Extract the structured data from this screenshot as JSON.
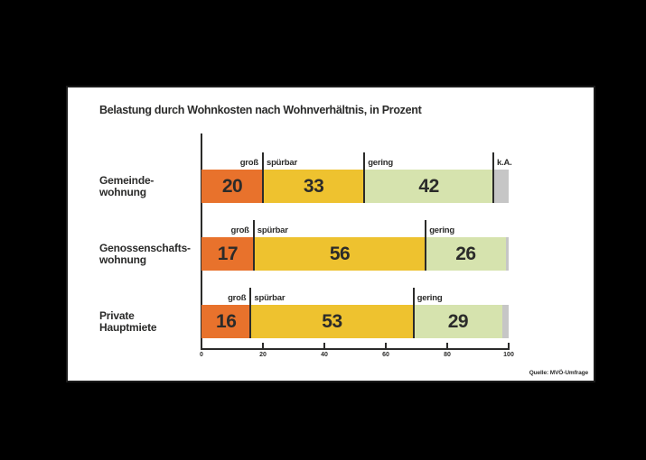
{
  "page": {
    "background_color": "#000000"
  },
  "panel": {
    "background_color": "#ffffff",
    "border_color": "#1a1a1a",
    "title": "Belastung durch Wohnkosten nach Wohnverhältnis, in Prozent",
    "source": "Quelle: MVÖ-Umfrage"
  },
  "colors": {
    "gross": "#e8722c",
    "spuerbar": "#eec22f",
    "gering": "#d6e3ae",
    "ka": "#c6c6c6",
    "text": "#2b2b2a"
  },
  "chart_data": {
    "type": "bar",
    "orientation": "horizontal",
    "stacked": true,
    "title": "Belastung durch Wohnkosten nach Wohnverhältnis, in Prozent",
    "unit": "Prozent",
    "xlim": [
      0,
      100
    ],
    "x_ticks": [
      0,
      20,
      40,
      60,
      80,
      100
    ],
    "grid": false,
    "legend_position": "inline-above-segments",
    "categories": [
      "Gemeindewohnung",
      "Genossenschaftswohnung",
      "Private Hauptmiete"
    ],
    "series": [
      {
        "name": "groß",
        "color": "#e8722c",
        "values": [
          20,
          17,
          16
        ]
      },
      {
        "name": "spürbar",
        "color": "#eec22f",
        "values": [
          33,
          56,
          53
        ]
      },
      {
        "name": "gering",
        "color": "#d6e3ae",
        "values": [
          42,
          26,
          29
        ]
      },
      {
        "name": "k.A.",
        "color": "#c6c6c6",
        "values": [
          5,
          1,
          2
        ]
      }
    ],
    "rows": [
      {
        "label_lines": [
          "Gemeinde-",
          "wohnung"
        ],
        "segments": [
          {
            "name": "groß",
            "value": 20,
            "color": "#e8722c",
            "show_value": true,
            "show_name": true,
            "name_align": "right",
            "tick": false
          },
          {
            "name": "spürbar",
            "value": 33,
            "color": "#eec22f",
            "show_value": true,
            "show_name": true,
            "name_align": "left",
            "tick": true
          },
          {
            "name": "gering",
            "value": 42,
            "color": "#d6e3ae",
            "show_value": true,
            "show_name": true,
            "name_align": "left",
            "tick": true
          },
          {
            "name": "k.A.",
            "value": 5,
            "color": "#c6c6c6",
            "show_value": false,
            "show_name": true,
            "name_align": "left",
            "tick": true
          }
        ]
      },
      {
        "label_lines": [
          "Genossenschafts-",
          "wohnung"
        ],
        "segments": [
          {
            "name": "groß",
            "value": 17,
            "color": "#e8722c",
            "show_value": true,
            "show_name": true,
            "name_align": "right",
            "tick": false
          },
          {
            "name": "spürbar",
            "value": 56,
            "color": "#eec22f",
            "show_value": true,
            "show_name": true,
            "name_align": "left",
            "tick": true
          },
          {
            "name": "gering",
            "value": 26,
            "color": "#d6e3ae",
            "show_value": true,
            "show_name": true,
            "name_align": "left",
            "tick": true
          },
          {
            "name": "k.A.",
            "value": 1,
            "color": "#c6c6c6",
            "show_value": false,
            "show_name": false,
            "name_align": "left",
            "tick": false
          }
        ]
      },
      {
        "label_lines": [
          "Private",
          "Hauptmiete"
        ],
        "segments": [
          {
            "name": "groß",
            "value": 16,
            "color": "#e8722c",
            "show_value": true,
            "show_name": true,
            "name_align": "right",
            "tick": false
          },
          {
            "name": "spürbar",
            "value": 53,
            "color": "#eec22f",
            "show_value": true,
            "show_name": true,
            "name_align": "left",
            "tick": true
          },
          {
            "name": "gering",
            "value": 29,
            "color": "#d6e3ae",
            "show_value": true,
            "show_name": true,
            "name_align": "left",
            "tick": true
          },
          {
            "name": "k.A.",
            "value": 2,
            "color": "#c6c6c6",
            "show_value": false,
            "show_name": false,
            "name_align": "left",
            "tick": false
          }
        ]
      }
    ]
  }
}
